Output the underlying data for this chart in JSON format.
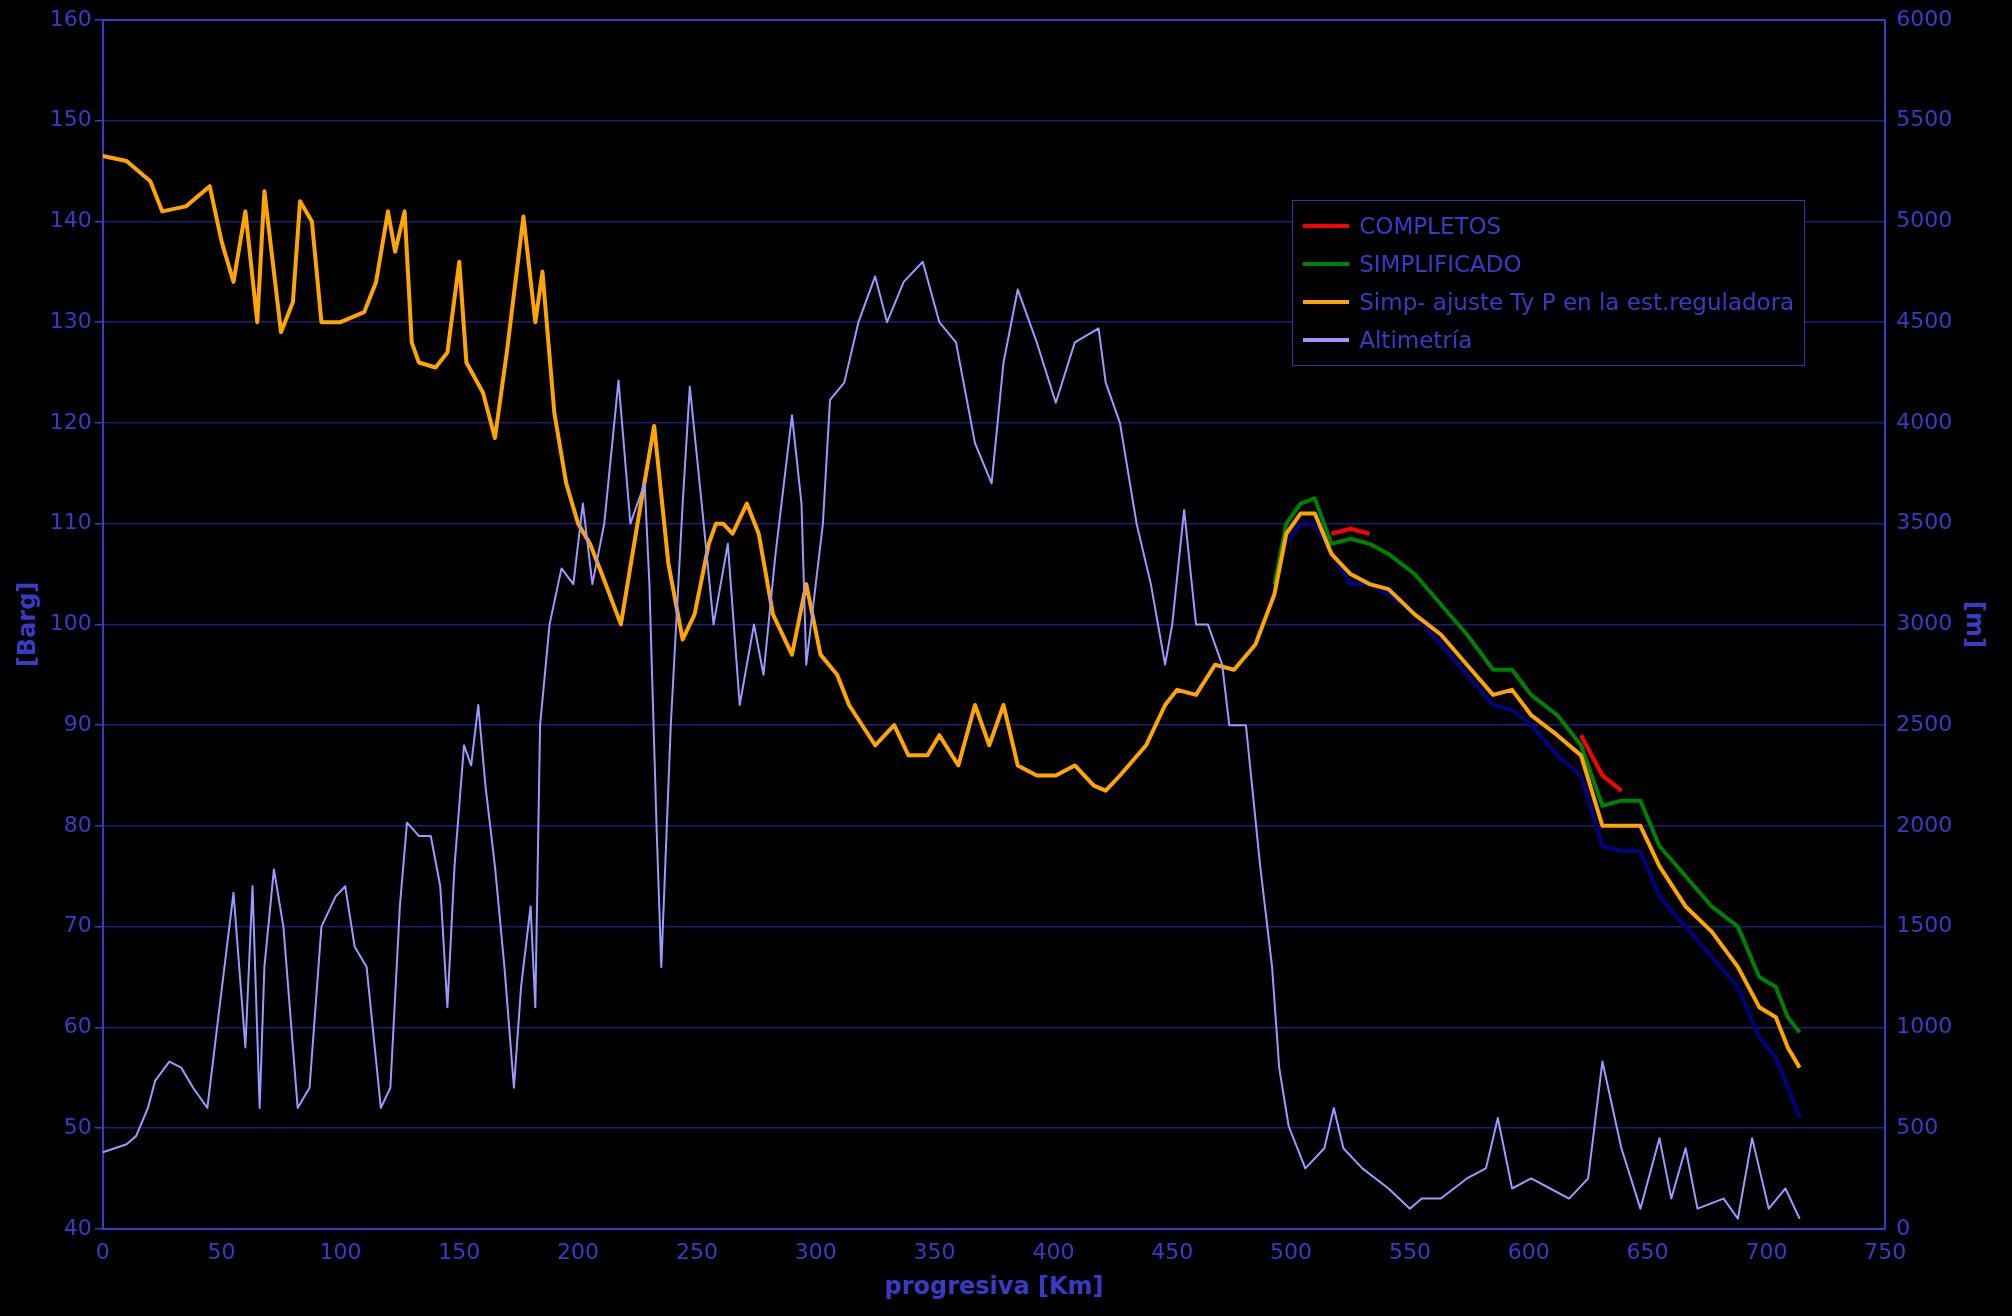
{
  "chart_data": {
    "type": "line",
    "xlabel": "progresiva [Km]",
    "ylabel": "[Barg]",
    "y2label": "[m]",
    "xlim": [
      0,
      750
    ],
    "xticks": [
      0,
      50,
      100,
      150,
      200,
      250,
      300,
      350,
      400,
      450,
      500,
      550,
      600,
      650,
      700,
      750
    ],
    "ylim": [
      40,
      160
    ],
    "yticks": [
      40,
      50,
      60,
      70,
      80,
      90,
      100,
      110,
      120,
      130,
      140,
      150,
      160
    ],
    "y2lim": [
      0,
      6000
    ],
    "y2ticks": [
      0,
      500,
      1000,
      1500,
      2000,
      2500,
      3000,
      3500,
      4000,
      4500,
      5000,
      5500,
      6000
    ],
    "grid": "y",
    "legend": "top right",
    "marker": "none",
    "line_style": "solid",
    "x": [
      0,
      10,
      20,
      25,
      35,
      45,
      50,
      55,
      60,
      65,
      68,
      75,
      80,
      83,
      88,
      92,
      100,
      110,
      115,
      120,
      123,
      127,
      130,
      133,
      140,
      145,
      150,
      153,
      160,
      165,
      170,
      177,
      182,
      185,
      190,
      195,
      200,
      205,
      210,
      218,
      225,
      232,
      238,
      244,
      249,
      255,
      258,
      261,
      265,
      271,
      276,
      282,
      290,
      296,
      302,
      309,
      314,
      325,
      333,
      339,
      347,
      352,
      360,
      367,
      373,
      379,
      385,
      393,
      401,
      409,
      417,
      422,
      428,
      439,
      447,
      452,
      460,
      468,
      476,
      485,
      493,
      498,
      504,
      510,
      517,
      525,
      533,
      541,
      552,
      563,
      574,
      585,
      593,
      601,
      612,
      622,
      631,
      639,
      647,
      655,
      666,
      677,
      688,
      697,
      704,
      709,
      714
    ],
    "series": [
      {
        "color": "#000080",
        "values": [
          null,
          null,
          null,
          null,
          null,
          null,
          null,
          null,
          null,
          null,
          null,
          null,
          null,
          null,
          null,
          null,
          null,
          null,
          null,
          null,
          null,
          null,
          null,
          null,
          null,
          null,
          null,
          null,
          null,
          null,
          null,
          null,
          null,
          null,
          null,
          null,
          null,
          null,
          null,
          null,
          null,
          null,
          null,
          null,
          null,
          null,
          null,
          null,
          null,
          null,
          null,
          null,
          null,
          null,
          null,
          null,
          null,
          null,
          null,
          null,
          null,
          null,
          null,
          null,
          null,
          null,
          null,
          null,
          null,
          null,
          null,
          null,
          null,
          null,
          null,
          null,
          null,
          null,
          null,
          null,
          null,
          108,
          110,
          110,
          107,
          104,
          104,
          103,
          101,
          98,
          95,
          92,
          91.5,
          90,
          87,
          85,
          78,
          77.5,
          77.5,
          73,
          70,
          67,
          64,
          59,
          57,
          54,
          51
        ]
      },
      {
        "name": "COMPLETOS",
        "color": "#ff0000",
        "values": [
          null,
          null,
          null,
          null,
          null,
          null,
          null,
          null,
          null,
          null,
          null,
          null,
          null,
          null,
          null,
          null,
          null,
          null,
          null,
          null,
          null,
          null,
          null,
          null,
          null,
          null,
          null,
          null,
          null,
          null,
          null,
          null,
          null,
          null,
          null,
          null,
          null,
          null,
          null,
          null,
          null,
          null,
          null,
          null,
          null,
          null,
          null,
          null,
          null,
          null,
          null,
          null,
          null,
          null,
          null,
          null,
          null,
          null,
          null,
          null,
          null,
          null,
          null,
          null,
          null,
          null,
          null,
          null,
          null,
          null,
          null,
          null,
          null,
          null,
          null,
          null,
          null,
          null,
          null,
          null,
          null,
          null,
          null,
          null,
          109,
          109.5,
          109,
          null,
          null,
          null,
          null,
          null,
          null,
          null,
          null,
          89,
          85,
          83.5,
          null,
          null,
          null,
          null,
          null,
          null,
          null,
          null,
          null
        ]
      },
      {
        "name": "SIMPLIFICADO",
        "color": "#008000",
        "values": [
          null,
          null,
          null,
          null,
          null,
          null,
          null,
          null,
          null,
          null,
          null,
          null,
          null,
          null,
          null,
          null,
          null,
          null,
          null,
          null,
          null,
          null,
          null,
          null,
          null,
          null,
          null,
          null,
          null,
          null,
          null,
          null,
          null,
          null,
          null,
          null,
          null,
          null,
          null,
          null,
          null,
          null,
          null,
          null,
          null,
          null,
          null,
          null,
          null,
          null,
          null,
          null,
          null,
          null,
          null,
          null,
          null,
          null,
          null,
          null,
          null,
          null,
          null,
          null,
          null,
          null,
          null,
          null,
          null,
          null,
          null,
          null,
          null,
          null,
          null,
          null,
          null,
          null,
          null,
          null,
          104,
          110,
          112,
          112.5,
          108,
          108.5,
          108,
          107,
          105,
          102,
          99,
          95.5,
          95.5,
          93,
          91,
          88,
          82,
          82.5,
          82.5,
          78,
          75,
          72,
          70,
          65,
          64,
          61,
          59.5
        ]
      },
      {
        "name": "Simp- ajuste Ty P en la est.reguladora",
        "color": "#ffa500",
        "values": [
          146.5,
          146,
          144,
          141,
          141.5,
          143.5,
          138,
          134,
          141,
          130,
          143,
          129,
          132,
          142,
          140,
          130,
          130,
          131,
          134,
          141,
          137,
          141,
          128,
          126,
          125.5,
          127,
          136,
          126,
          123,
          118.5,
          127,
          140.5,
          130,
          135,
          121,
          114,
          110,
          108,
          105,
          100,
          110,
          119.7,
          106,
          98.5,
          101,
          108,
          110,
          110,
          109,
          112,
          109,
          101,
          97,
          104,
          97,
          95,
          92,
          88,
          90,
          87,
          87,
          89,
          86,
          92,
          88,
          92,
          86,
          85,
          85,
          86,
          84,
          83.5,
          85,
          88,
          92,
          93.5,
          93,
          96,
          95.5,
          98,
          103,
          109,
          111,
          111,
          107,
          105,
          104,
          103.5,
          101,
          99,
          96,
          93,
          93.5,
          91,
          89,
          87,
          80,
          80,
          80,
          76,
          72,
          69.5,
          66,
          62,
          61,
          58,
          56
        ]
      },
      {
        "name": "Altimetría",
        "color": "#9999ff",
        "axis": "y2",
        "x": [
          0,
          10,
          14,
          19,
          22,
          28,
          33,
          38,
          44,
          49,
          55,
          60,
          63,
          66,
          68,
          72,
          76,
          82,
          87,
          92,
          98,
          102,
          106,
          111,
          117,
          121,
          125,
          128,
          133,
          138,
          142,
          145,
          148,
          152,
          155,
          158,
          161,
          165,
          169,
          173,
          176,
          180,
          182,
          184,
          188,
          193,
          198,
          202,
          206,
          211,
          217,
          222,
          228,
          230,
          233,
          235,
          239,
          244,
          247,
          252,
          257,
          263,
          268,
          274,
          278,
          283,
          290,
          294,
          296,
          303,
          306,
          312,
          318,
          325,
          330,
          337,
          345,
          352,
          359,
          367,
          374,
          379,
          385,
          393,
          401,
          409,
          419,
          422,
          428,
          435,
          441,
          447,
          450,
          455,
          460,
          465,
          471,
          474,
          481,
          487,
          492,
          495,
          499,
          506,
          514,
          518,
          522,
          530,
          541,
          550,
          555,
          563,
          574,
          582,
          587,
          593,
          601,
          609,
          617,
          625,
          631,
          639,
          647,
          655,
          660,
          666,
          671,
          682,
          688,
          694,
          701,
          708,
          714
        ],
        "values": [
          380,
          420,
          460,
          600,
          734,
          830,
          800,
          700,
          600,
          1088,
          1668,
          900,
          1700,
          600,
          1300,
          1784,
          1500,
          600,
          700,
          1500,
          1650,
          1700,
          1400,
          1300,
          600,
          700,
          1600,
          2016,
          1950,
          1950,
          1700,
          1100,
          1800,
          2400,
          2300,
          2600,
          2200,
          1800,
          1300,
          700,
          1200,
          1600,
          1100,
          2500,
          3000,
          3278,
          3200,
          3600,
          3200,
          3500,
          4211,
          3500,
          3700,
          3200,
          2000,
          1300,
          2500,
          3600,
          4180,
          3600,
          3000,
          3400,
          2600,
          3000,
          2750,
          3342,
          4038,
          3600,
          2800,
          3500,
          4115,
          4200,
          4502,
          4727,
          4500,
          4700,
          4800,
          4500,
          4400,
          3900,
          3700,
          4300,
          4662,
          4400,
          4100,
          4400,
          4469,
          4200,
          4000,
          3500,
          3200,
          2800,
          3000,
          3568,
          3000,
          3000,
          2800,
          2500,
          2500,
          1800,
          1300,
          800,
          509,
          300,
          400,
          600,
          400,
          300,
          200,
          100,
          150,
          150,
          250,
          300,
          550,
          200,
          250,
          200,
          150,
          250,
          830,
          400,
          100,
          450,
          150,
          400,
          100,
          150,
          50,
          450,
          100,
          200,
          50
        ]
      }
    ]
  }
}
